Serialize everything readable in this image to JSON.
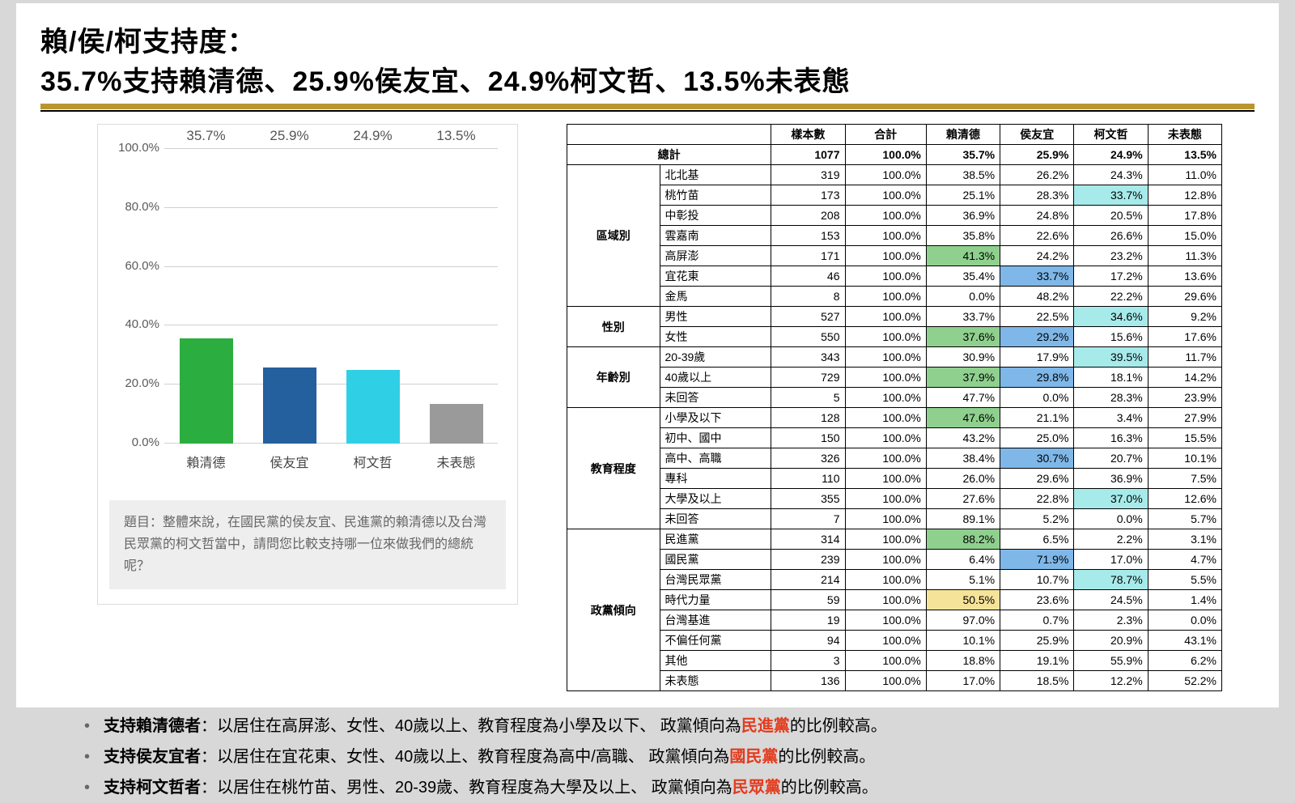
{
  "title": {
    "line1": "賴/侯/柯支持度：",
    "line2": "35.7%支持賴清德、25.9%侯友宜、24.9%柯文哲、13.5%未表態"
  },
  "chart": {
    "type": "bar",
    "ylim": [
      0,
      100
    ],
    "ytick_step": 20,
    "ytick_labels": [
      "0.0%",
      "20.0%",
      "40.0%",
      "60.0%",
      "80.0%",
      "100.0%"
    ],
    "grid_color": "#d0d0d0",
    "label_color": "#5a5a5a",
    "bars": [
      {
        "category": "賴清德",
        "value": 35.7,
        "label": "35.7%",
        "color": "#2bae3f"
      },
      {
        "category": "侯友宜",
        "value": 25.9,
        "label": "25.9%",
        "color": "#245f9e"
      },
      {
        "category": "柯文哲",
        "value": 24.9,
        "label": "24.9%",
        "color": "#2fd0e6"
      },
      {
        "category": "未表態",
        "value": 13.5,
        "label": "13.5%",
        "color": "#9a9a9a"
      }
    ],
    "question": "題目：整體來說，在國民黨的侯友宜、民進黨的賴清德以及台灣民眾黨的柯文哲當中，請問您比較支持哪一位來做我們的總統呢？"
  },
  "table": {
    "headers": [
      "樣本數",
      "合計",
      "賴清德",
      "侯友宜",
      "柯文哲",
      "未表態"
    ],
    "total_label": "總計",
    "total_row": [
      "1077",
      "100.0%",
      "35.7%",
      "25.9%",
      "24.9%",
      "13.5%"
    ],
    "highlight_colors": {
      "green": "#8fd08f",
      "blue": "#7fb7e8",
      "cyan": "#a7eaea",
      "yellow": "#f6e39a"
    },
    "groups": [
      {
        "category": "區域別",
        "rows": [
          {
            "sub": "北北基",
            "cells": [
              "319",
              "100.0%",
              "38.5%",
              "26.2%",
              "24.3%",
              "11.0%"
            ],
            "hl": {}
          },
          {
            "sub": "桃竹苗",
            "cells": [
              "173",
              "100.0%",
              "25.1%",
              "28.3%",
              "33.7%",
              "12.8%"
            ],
            "hl": {
              "4": "cyan"
            }
          },
          {
            "sub": "中彰投",
            "cells": [
              "208",
              "100.0%",
              "36.9%",
              "24.8%",
              "20.5%",
              "17.8%"
            ],
            "hl": {}
          },
          {
            "sub": "雲嘉南",
            "cells": [
              "153",
              "100.0%",
              "35.8%",
              "22.6%",
              "26.6%",
              "15.0%"
            ],
            "hl": {}
          },
          {
            "sub": "高屏澎",
            "cells": [
              "171",
              "100.0%",
              "41.3%",
              "24.2%",
              "23.2%",
              "11.3%"
            ],
            "hl": {
              "2": "green"
            }
          },
          {
            "sub": "宜花東",
            "cells": [
              "46",
              "100.0%",
              "35.4%",
              "33.7%",
              "17.2%",
              "13.6%"
            ],
            "hl": {
              "3": "blue"
            }
          },
          {
            "sub": "金馬",
            "cells": [
              "8",
              "100.0%",
              "0.0%",
              "48.2%",
              "22.2%",
              "29.6%"
            ],
            "hl": {}
          }
        ]
      },
      {
        "category": "性別",
        "rows": [
          {
            "sub": "男性",
            "cells": [
              "527",
              "100.0%",
              "33.7%",
              "22.5%",
              "34.6%",
              "9.2%"
            ],
            "hl": {
              "4": "cyan"
            }
          },
          {
            "sub": "女性",
            "cells": [
              "550",
              "100.0%",
              "37.6%",
              "29.2%",
              "15.6%",
              "17.6%"
            ],
            "hl": {
              "2": "green",
              "3": "blue"
            }
          }
        ]
      },
      {
        "category": "年齡別",
        "rows": [
          {
            "sub": "20-39歲",
            "cells": [
              "343",
              "100.0%",
              "30.9%",
              "17.9%",
              "39.5%",
              "11.7%"
            ],
            "hl": {
              "4": "cyan"
            }
          },
          {
            "sub": "40歲以上",
            "cells": [
              "729",
              "100.0%",
              "37.9%",
              "29.8%",
              "18.1%",
              "14.2%"
            ],
            "hl": {
              "2": "green",
              "3": "blue"
            }
          },
          {
            "sub": "未回答",
            "cells": [
              "5",
              "100.0%",
              "47.7%",
              "0.0%",
              "28.3%",
              "23.9%"
            ],
            "hl": {}
          }
        ]
      },
      {
        "category": "教育程度",
        "rows": [
          {
            "sub": "小學及以下",
            "cells": [
              "128",
              "100.0%",
              "47.6%",
              "21.1%",
              "3.4%",
              "27.9%"
            ],
            "hl": {
              "2": "green"
            }
          },
          {
            "sub": "初中、國中",
            "cells": [
              "150",
              "100.0%",
              "43.2%",
              "25.0%",
              "16.3%",
              "15.5%"
            ],
            "hl": {}
          },
          {
            "sub": "高中、高職",
            "cells": [
              "326",
              "100.0%",
              "38.4%",
              "30.7%",
              "20.7%",
              "10.1%"
            ],
            "hl": {
              "3": "blue"
            }
          },
          {
            "sub": "專科",
            "cells": [
              "110",
              "100.0%",
              "26.0%",
              "29.6%",
              "36.9%",
              "7.5%"
            ],
            "hl": {}
          },
          {
            "sub": "大學及以上",
            "cells": [
              "355",
              "100.0%",
              "27.6%",
              "22.8%",
              "37.0%",
              "12.6%"
            ],
            "hl": {
              "4": "cyan"
            }
          },
          {
            "sub": "未回答",
            "cells": [
              "7",
              "100.0%",
              "89.1%",
              "5.2%",
              "0.0%",
              "5.7%"
            ],
            "hl": {}
          }
        ]
      },
      {
        "category": "政黨傾向",
        "rows": [
          {
            "sub": "民進黨",
            "cells": [
              "314",
              "100.0%",
              "88.2%",
              "6.5%",
              "2.2%",
              "3.1%"
            ],
            "hl": {
              "2": "green"
            }
          },
          {
            "sub": "國民黨",
            "cells": [
              "239",
              "100.0%",
              "6.4%",
              "71.9%",
              "17.0%",
              "4.7%"
            ],
            "hl": {
              "3": "blue"
            }
          },
          {
            "sub": "台灣民眾黨",
            "cells": [
              "214",
              "100.0%",
              "5.1%",
              "10.7%",
              "78.7%",
              "5.5%"
            ],
            "hl": {
              "4": "cyan"
            }
          },
          {
            "sub": "時代力量",
            "cells": [
              "59",
              "100.0%",
              "50.5%",
              "23.6%",
              "24.5%",
              "1.4%"
            ],
            "hl": {
              "2": "yellow"
            }
          },
          {
            "sub": "台灣基進",
            "cells": [
              "19",
              "100.0%",
              "97.0%",
              "0.7%",
              "2.3%",
              "0.0%"
            ],
            "hl": {}
          },
          {
            "sub": "不偏任何黨",
            "cells": [
              "94",
              "100.0%",
              "10.1%",
              "25.9%",
              "20.9%",
              "43.1%"
            ],
            "hl": {}
          },
          {
            "sub": "其他",
            "cells": [
              "3",
              "100.0%",
              "18.8%",
              "19.1%",
              "55.9%",
              "6.2%"
            ],
            "hl": {}
          },
          {
            "sub": "未表態",
            "cells": [
              "136",
              "100.0%",
              "17.0%",
              "18.5%",
              "12.2%",
              "52.2%"
            ],
            "hl": {}
          }
        ]
      }
    ]
  },
  "bullets": [
    {
      "leadBold": "支持賴清德者",
      "rest1": "：以居住在高屏澎、女性、40歲以上、教育程度為小學及以下、 政黨傾向為",
      "party": "民進黨",
      "rest2": "的比例較高。",
      "partyColor": "#e33b1e"
    },
    {
      "leadBold": "支持侯友宜者",
      "rest1": "：以居住在宜花東、女性、40歲以上、教育程度為高中/高職、 政黨傾向為",
      "party": "國民黨",
      "rest2": "的比例較高。",
      "partyColor": "#e33b1e"
    },
    {
      "leadBold": "支持柯文哲者",
      "rest1": "：以居住在桃竹苗、男性、20-39歲、教育程度為大學及以上、 政黨傾向為",
      "party": "民眾黨",
      "rest2": "的比例較高。",
      "partyColor": "#e33b1e"
    }
  ]
}
